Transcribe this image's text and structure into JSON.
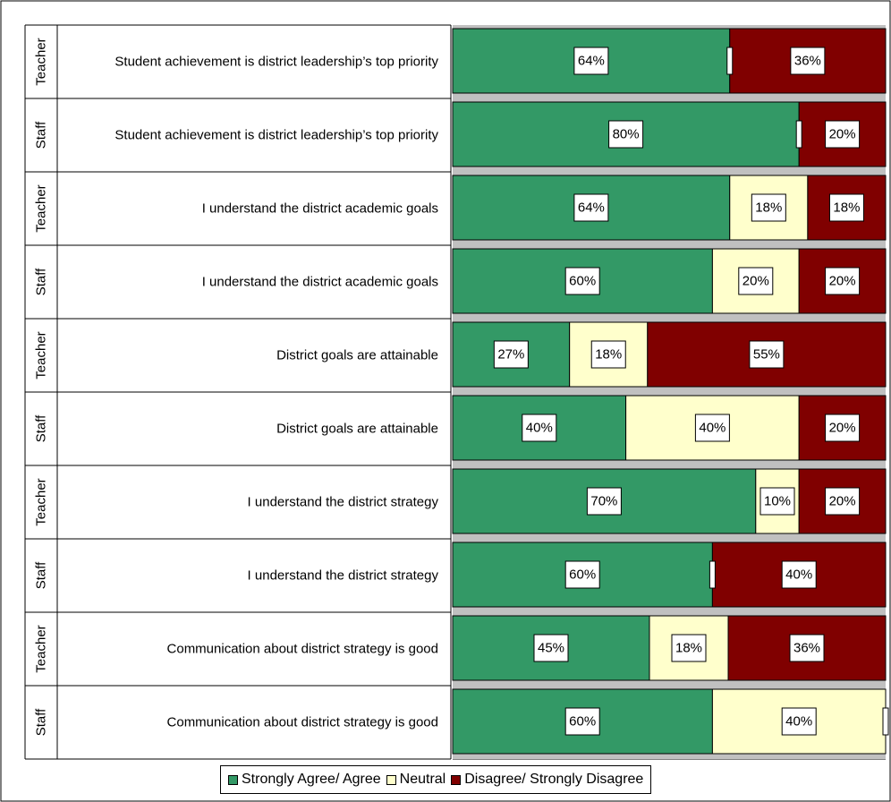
{
  "colors": {
    "agree": "#339966",
    "neutral": "#FFFFCC",
    "disagree": "#800000",
    "gap": "#C0C0C0"
  },
  "chart_data": {
    "type": "bar",
    "orientation": "horizontal",
    "stacked": true,
    "percent_stacked": true,
    "legend_position": "bottom",
    "grid": false,
    "rows": [
      {
        "group": "Teacher",
        "category": "Student achievement is district leadership’s top priority",
        "values": [
          64,
          0,
          36
        ],
        "labels": [
          "64%",
          "",
          "36%"
        ]
      },
      {
        "group": "Staff",
        "category": "Student achievement is district leadership’s top priority",
        "values": [
          80,
          0,
          20
        ],
        "labels": [
          "80%",
          "",
          "20%"
        ]
      },
      {
        "group": "Teacher",
        "category": "I understand the district academic goals",
        "values": [
          64,
          18,
          18
        ],
        "labels": [
          "64%",
          "18%",
          "18%"
        ]
      },
      {
        "group": "Staff",
        "category": "I understand the district academic goals",
        "values": [
          60,
          20,
          20
        ],
        "labels": [
          "60%",
          "20%",
          "20%"
        ]
      },
      {
        "group": "Teacher",
        "category": "District goals are attainable",
        "values": [
          27,
          18,
          55
        ],
        "labels": [
          "27%",
          "18%",
          "55%"
        ]
      },
      {
        "group": "Staff",
        "category": "District goals are attainable",
        "values": [
          40,
          40,
          20
        ],
        "labels": [
          "40%",
          "40%",
          "20%"
        ]
      },
      {
        "group": "Teacher",
        "category": "I understand the district strategy",
        "values": [
          70,
          10,
          20
        ],
        "labels": [
          "70%",
          "10%",
          "20%"
        ]
      },
      {
        "group": "Staff",
        "category": "I understand the district strategy",
        "values": [
          60,
          0,
          40
        ],
        "labels": [
          "60%",
          "",
          "40%"
        ]
      },
      {
        "group": "Teacher",
        "category": "Communication about district strategy is good",
        "values": [
          45,
          18,
          36
        ],
        "labels": [
          "45%",
          "18%",
          "36%"
        ]
      },
      {
        "group": "Staff",
        "category": "Communication about district strategy is good",
        "values": [
          60,
          40,
          0
        ],
        "labels": [
          "60%",
          "40%",
          ""
        ]
      }
    ],
    "series": [
      {
        "name": "Strongly Agree/ Agree"
      },
      {
        "name": "Neutral"
      },
      {
        "name": "Disagree/ Strongly Disagree"
      }
    ]
  }
}
